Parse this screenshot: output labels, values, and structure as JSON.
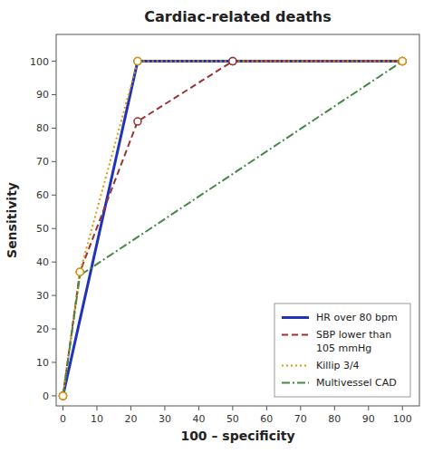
{
  "chart_data": {
    "type": "line",
    "title": "Cardiac-related deaths",
    "x_label": "100 – specificity",
    "y_label": "Sensitivity",
    "xlim": [
      -2,
      105
    ],
    "ylim": [
      -3,
      108
    ],
    "xticks": [
      0,
      10,
      20,
      30,
      40,
      50,
      60,
      70,
      80,
      90,
      100
    ],
    "yticks": [
      0,
      10,
      20,
      30,
      40,
      50,
      60,
      70,
      80,
      90,
      100
    ],
    "grid": false,
    "legend": "lower right",
    "series": [
      {
        "name": "HR over 80 bpm",
        "color": "#2233bb",
        "line_style": "solid",
        "marker": "circle",
        "x": [
          0,
          22,
          50,
          100
        ],
        "values": [
          0,
          100,
          100,
          100
        ]
      },
      {
        "name": "SBP lower than\n105 mmHg",
        "color": "#993333",
        "line_style": "dashed",
        "marker": "circle",
        "x": [
          0,
          5,
          22,
          50,
          100
        ],
        "values": [
          0,
          37,
          82,
          100,
          100
        ]
      },
      {
        "name": "Killip 3/4",
        "color": "#dd9900",
        "line_style": "dotted",
        "marker": "circle",
        "x": [
          0,
          5,
          22,
          100
        ],
        "values": [
          0,
          37,
          100,
          100
        ]
      },
      {
        "name": "Multivessel CAD",
        "color": "#448844",
        "line_style": "dashdot",
        "marker": "none",
        "x": [
          0,
          5,
          100
        ],
        "values": [
          0,
          36,
          100
        ]
      }
    ]
  }
}
